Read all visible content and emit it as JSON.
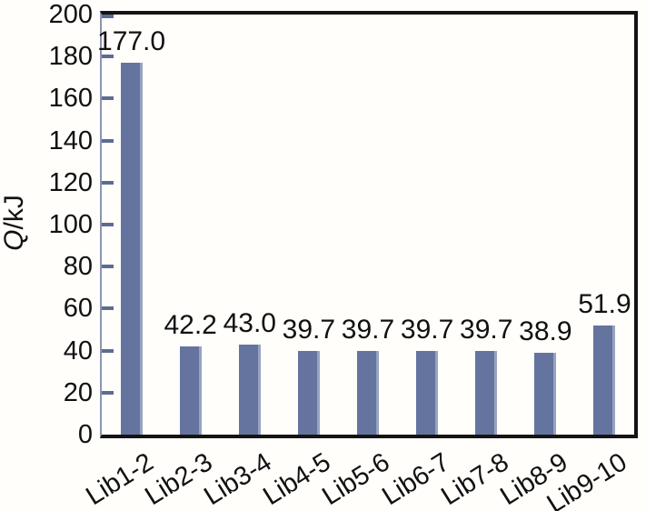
{
  "chart_data": {
    "type": "bar",
    "title": "",
    "xlabel": "",
    "ylabel": "Q/kJ",
    "ylabel_parts": {
      "italic": "Q",
      "regular": "/kJ"
    },
    "categories": [
      "Lib1-2",
      "Lib2-3",
      "Lib3-4",
      "Lib4-5",
      "Lib5-6",
      "Lib6-7",
      "Lib7-8",
      "Lib8-9",
      "Lib9-10"
    ],
    "values": [
      177.0,
      42.2,
      43.0,
      39.7,
      39.7,
      39.7,
      39.7,
      38.9,
      51.9
    ],
    "value_labels": [
      "177.0",
      "42.2",
      "43.0",
      "39.7",
      "39.7",
      "39.7",
      "39.7",
      "38.9",
      "51.9"
    ],
    "ylim": [
      0,
      200
    ],
    "yticks": [
      0,
      20,
      40,
      60,
      80,
      100,
      120,
      140,
      160,
      180,
      200
    ],
    "grid": false,
    "legend": null,
    "colors": {
      "bar_fill": "#64749e",
      "bar_edge_highlight": "#97a3c1",
      "y_axis_line": "#8b95b2",
      "tick_mark": "#5d6c93",
      "frame": "#141414",
      "text": "#111111"
    }
  }
}
